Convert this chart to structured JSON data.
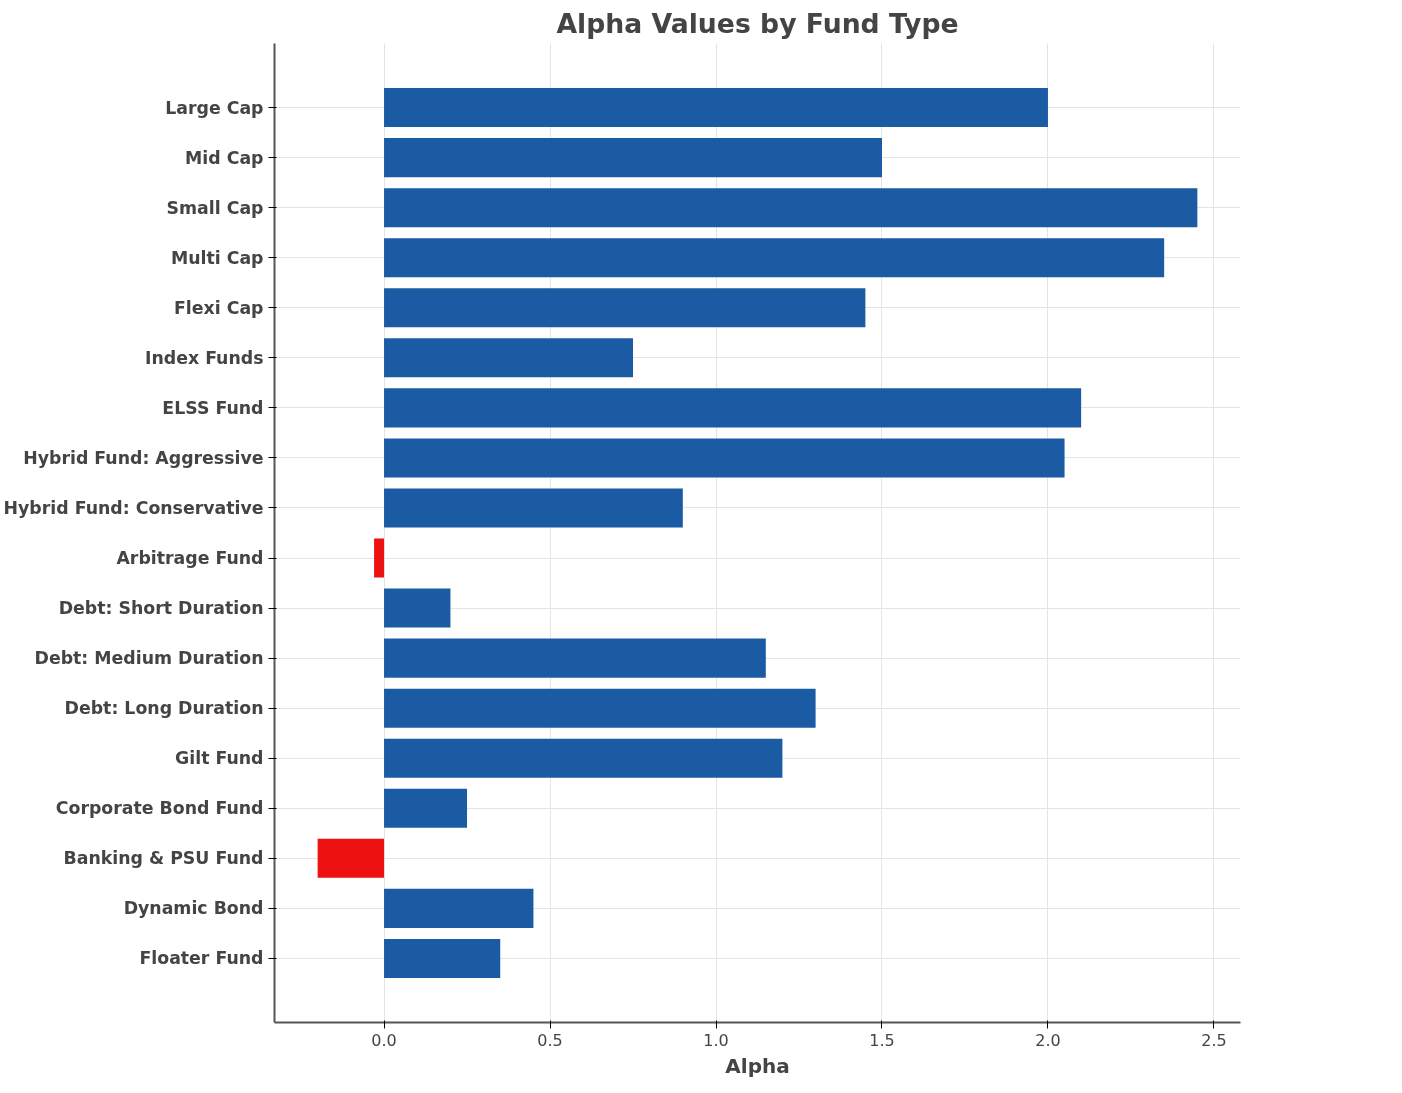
{
  "chart_data": {
    "type": "bar",
    "orientation": "horizontal",
    "title": "Alpha Values by Fund Type",
    "xlabel": "Alpha",
    "categories": [
      "Large Cap",
      "Mid Cap",
      "Small Cap",
      "Multi Cap",
      "Flexi Cap",
      "Index Funds",
      "ELSS Fund",
      "Hybrid Fund: Aggressive",
      "Hybrid Fund: Conservative",
      "Arbitrage Fund",
      "Debt: Short Duration",
      "Debt: Medium Duration",
      "Debt: Long Duration",
      "Gilt Fund",
      "Corporate Bond Fund",
      "Banking & PSU Fund",
      "Dynamic Bond",
      "Floater Fund"
    ],
    "values": [
      2.0,
      1.5,
      2.45,
      2.35,
      1.45,
      0.75,
      2.1,
      2.05,
      0.9,
      -0.03,
      0.2,
      1.15,
      1.3,
      1.2,
      0.25,
      -0.2,
      0.45,
      0.35
    ],
    "colors": [
      "#1a5ba3",
      "#1a5ba3",
      "#1a5ba3",
      "#1a5ba3",
      "#1a5ba3",
      "#1a5ba3",
      "#1a5ba3",
      "#1a5ba3",
      "#1a5ba3",
      "#ee1111",
      "#1a5ba3",
      "#1a5ba3",
      "#1a5ba3",
      "#1a5ba3",
      "#1a5ba3",
      "#ee1111",
      "#1a5ba3",
      "#1a5ba3"
    ],
    "xlim": [
      -0.33,
      2.58
    ],
    "xticks": [
      {
        "value": 0,
        "label": "0.0"
      },
      {
        "value": 0.5,
        "label": "0.5"
      },
      {
        "value": 1,
        "label": "1.0"
      },
      {
        "value": 1.5,
        "label": "1.5"
      },
      {
        "value": 2,
        "label": "2.0"
      },
      {
        "value": 2.5,
        "label": "2.5"
      }
    ],
    "grid": true
  }
}
